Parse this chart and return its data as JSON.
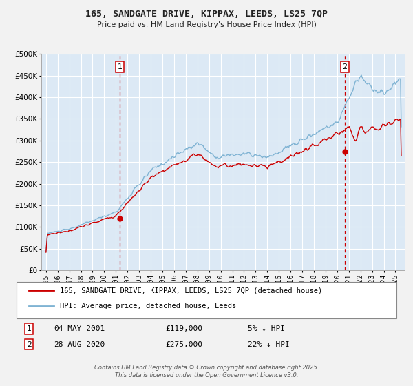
{
  "title": "165, SANDGATE DRIVE, KIPPAX, LEEDS, LS25 7QP",
  "subtitle": "Price paid vs. HM Land Registry's House Price Index (HPI)",
  "bg_color": "#dce9f5",
  "fig_bg_color": "#f2f2f2",
  "hpi_color": "#7fb3d3",
  "price_color": "#cc0000",
  "grid_color": "#ffffff",
  "vline_color": "#cc0000",
  "ylim": [
    0,
    500000
  ],
  "yticks": [
    0,
    50000,
    100000,
    150000,
    200000,
    250000,
    300000,
    350000,
    400000,
    450000,
    500000
  ],
  "xlabel_years": [
    "1995",
    "1996",
    "1997",
    "1998",
    "1999",
    "2000",
    "2001",
    "2002",
    "2003",
    "2004",
    "2005",
    "2006",
    "2007",
    "2008",
    "2009",
    "2010",
    "2011",
    "2012",
    "2013",
    "2014",
    "2015",
    "2016",
    "2017",
    "2018",
    "2019",
    "2020",
    "2021",
    "2022",
    "2023",
    "2024",
    "2025"
  ],
  "purchase1_date": 2001.34,
  "purchase1_price": 119000,
  "purchase2_date": 2020.66,
  "purchase2_price": 275000,
  "legend_line1": "165, SANDGATE DRIVE, KIPPAX, LEEDS, LS25 7QP (detached house)",
  "legend_line2": "HPI: Average price, detached house, Leeds",
  "note1_date": "04-MAY-2001",
  "note1_price": "£119,000",
  "note1_pct": "5% ↓ HPI",
  "note2_date": "28-AUG-2020",
  "note2_price": "£275,000",
  "note2_pct": "22% ↓ HPI",
  "footer": "Contains HM Land Registry data © Crown copyright and database right 2025.\nThis data is licensed under the Open Government Licence v3.0."
}
